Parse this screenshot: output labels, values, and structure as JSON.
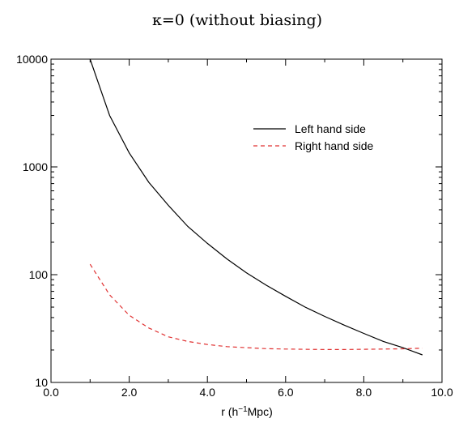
{
  "chart_data": {
    "type": "line",
    "title": "κ=0 (without biasing)",
    "xlabel_parts": {
      "pre": "r (h",
      "sup": "−1",
      "post": "Mpc)"
    },
    "ylabel": "",
    "xlim": [
      0.0,
      10.0
    ],
    "ylim": [
      10,
      10000
    ],
    "yscale": "log",
    "x_ticks": [
      "0.0",
      "2.0",
      "4.0",
      "6.0",
      "8.0",
      "10.0"
    ],
    "y_ticks": [
      "10",
      "100",
      "1000",
      "10000"
    ],
    "grid": false,
    "legend_position": "top-right",
    "series": [
      {
        "name": "Left hand side",
        "color": "#000000",
        "style": "solid",
        "x": [
          1.0,
          1.5,
          2.0,
          2.5,
          3.0,
          3.5,
          4.0,
          4.5,
          5.0,
          5.5,
          6.0,
          6.5,
          7.0,
          7.5,
          8.0,
          8.5,
          9.0,
          9.5
        ],
        "y": [
          10000,
          3000,
          1350,
          720,
          440,
          280,
          195,
          140,
          104,
          80,
          63,
          50,
          41,
          34,
          28.5,
          24,
          21,
          18
        ]
      },
      {
        "name": "Right hand side",
        "color": "#e03030",
        "style": "dashed",
        "x": [
          1.0,
          1.5,
          2.0,
          2.5,
          3.0,
          3.5,
          4.0,
          4.5,
          5.0,
          5.5,
          6.0,
          6.5,
          7.0,
          7.5,
          8.0,
          8.5,
          9.0,
          9.5
        ],
        "y": [
          125,
          65,
          42,
          32,
          26.5,
          24,
          22.5,
          21.5,
          21,
          20.6,
          20.4,
          20.3,
          20.2,
          20.2,
          20.3,
          20.4,
          20.5,
          20.8
        ]
      }
    ]
  }
}
